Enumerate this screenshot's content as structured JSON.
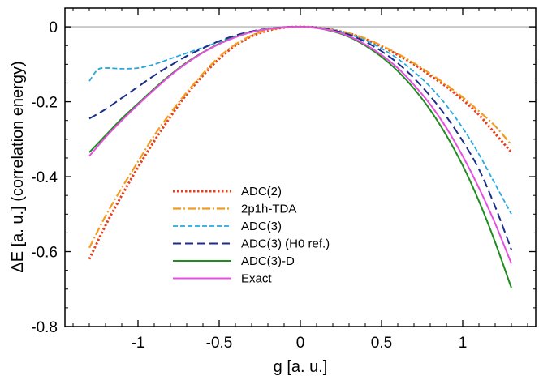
{
  "chart_data": {
    "type": "line",
    "xlabel": "g [a. u.]",
    "ylabel": "ΔE [a. u.]  (correlation energy)",
    "xlim": [
      -1.45,
      1.45
    ],
    "ylim": [
      -0.8,
      0.05
    ],
    "xticks": [
      -1,
      -0.5,
      0,
      0.5,
      1
    ],
    "xtick_labels": [
      "-1",
      "-0.5",
      "0",
      "0.5",
      "1"
    ],
    "yticks": [
      -0.8,
      -0.6,
      -0.4,
      -0.2,
      0
    ],
    "ytick_labels": [
      "-0.8",
      "-0.6",
      "-0.4",
      "-0.2",
      "0"
    ],
    "reference_line_y": 0,
    "legend_position": "center-left",
    "series": [
      {
        "name": "ADC(2)",
        "color": "#e8401c",
        "style": "dotted",
        "x": [
          -1.3,
          -1.2,
          -1.1,
          -1.0,
          -0.9,
          -0.8,
          -0.7,
          -0.6,
          -0.5,
          -0.4,
          -0.3,
          -0.2,
          -0.1,
          0.0,
          0.1,
          0.2,
          0.3,
          0.4,
          0.5,
          0.6,
          0.7,
          0.8,
          0.9,
          1.0,
          1.1,
          1.2,
          1.3
        ],
        "values": [
          -0.62,
          -0.53,
          -0.45,
          -0.375,
          -0.305,
          -0.24,
          -0.18,
          -0.13,
          -0.085,
          -0.05,
          -0.025,
          -0.01,
          -0.002,
          0.0,
          -0.002,
          -0.008,
          -0.018,
          -0.033,
          -0.052,
          -0.075,
          -0.1,
          -0.13,
          -0.16,
          -0.195,
          -0.235,
          -0.285,
          -0.335
        ]
      },
      {
        "name": "2p1h-TDA",
        "color": "#f39c1f",
        "style": "dashdot",
        "x": [
          -1.3,
          -1.2,
          -1.1,
          -1.0,
          -0.9,
          -0.8,
          -0.7,
          -0.6,
          -0.5,
          -0.4,
          -0.3,
          -0.2,
          -0.1,
          0.0,
          0.1,
          0.2,
          0.3,
          0.4,
          0.5,
          0.6,
          0.7,
          0.8,
          0.9,
          1.0,
          1.1,
          1.2,
          1.3
        ],
        "values": [
          -0.59,
          -0.505,
          -0.43,
          -0.36,
          -0.29,
          -0.23,
          -0.175,
          -0.125,
          -0.08,
          -0.047,
          -0.023,
          -0.009,
          -0.002,
          0.0,
          -0.002,
          -0.008,
          -0.017,
          -0.031,
          -0.05,
          -0.072,
          -0.097,
          -0.125,
          -0.155,
          -0.188,
          -0.225,
          -0.265,
          -0.315
        ]
      },
      {
        "name": "ADC(3)",
        "color": "#29a8e0",
        "style": "dashed",
        "x": [
          -1.3,
          -1.25,
          -1.2,
          -1.1,
          -1.0,
          -0.9,
          -0.8,
          -0.7,
          -0.6,
          -0.5,
          -0.4,
          -0.3,
          -0.2,
          -0.1,
          0.0,
          0.1,
          0.2,
          0.3,
          0.4,
          0.5,
          0.6,
          0.7,
          0.8,
          0.9,
          1.0,
          1.1,
          1.2,
          1.3
        ],
        "values": [
          -0.145,
          -0.115,
          -0.11,
          -0.112,
          -0.11,
          -0.1,
          -0.085,
          -0.07,
          -0.055,
          -0.04,
          -0.025,
          -0.013,
          -0.005,
          -0.001,
          0.0,
          -0.002,
          -0.008,
          -0.02,
          -0.036,
          -0.058,
          -0.085,
          -0.12,
          -0.16,
          -0.21,
          -0.27,
          -0.34,
          -0.42,
          -0.5
        ]
      },
      {
        "name": "ADC(3) (H0 ref.)",
        "color": "#1a2e8a",
        "style": "longdash",
        "x": [
          -1.3,
          -1.2,
          -1.1,
          -1.0,
          -0.9,
          -0.8,
          -0.7,
          -0.6,
          -0.5,
          -0.4,
          -0.3,
          -0.2,
          -0.1,
          0.0,
          0.1,
          0.2,
          0.3,
          0.4,
          0.5,
          0.6,
          0.7,
          0.8,
          0.9,
          1.0,
          1.1,
          1.2,
          1.3
        ],
        "values": [
          -0.245,
          -0.22,
          -0.19,
          -0.16,
          -0.13,
          -0.103,
          -0.078,
          -0.057,
          -0.038,
          -0.023,
          -0.012,
          -0.005,
          -0.001,
          0.0,
          -0.002,
          -0.009,
          -0.021,
          -0.04,
          -0.065,
          -0.097,
          -0.137,
          -0.185,
          -0.24,
          -0.305,
          -0.38,
          -0.48,
          -0.595
        ]
      },
      {
        "name": "ADC(3)-D",
        "color": "#1f8c1f",
        "style": "solid",
        "x": [
          -1.3,
          -1.2,
          -1.1,
          -1.0,
          -0.9,
          -0.8,
          -0.7,
          -0.6,
          -0.5,
          -0.4,
          -0.3,
          -0.2,
          -0.1,
          0.0,
          0.1,
          0.2,
          0.3,
          0.4,
          0.5,
          0.6,
          0.7,
          0.8,
          0.9,
          1.0,
          1.1,
          1.2,
          1.3
        ],
        "values": [
          -0.335,
          -0.29,
          -0.245,
          -0.205,
          -0.165,
          -0.128,
          -0.095,
          -0.068,
          -0.045,
          -0.027,
          -0.014,
          -0.006,
          -0.0015,
          0.0,
          -0.003,
          -0.012,
          -0.027,
          -0.05,
          -0.08,
          -0.118,
          -0.165,
          -0.222,
          -0.29,
          -0.37,
          -0.465,
          -0.575,
          -0.697
        ]
      },
      {
        "name": "Exact",
        "color": "#e84fe0",
        "style": "solid",
        "x": [
          -1.3,
          -1.2,
          -1.1,
          -1.0,
          -0.9,
          -0.8,
          -0.7,
          -0.6,
          -0.5,
          -0.4,
          -0.3,
          -0.2,
          -0.1,
          0.0,
          0.1,
          0.2,
          0.3,
          0.4,
          0.5,
          0.6,
          0.7,
          0.8,
          0.9,
          1.0,
          1.1,
          1.2,
          1.3
        ],
        "values": [
          -0.345,
          -0.295,
          -0.25,
          -0.208,
          -0.168,
          -0.13,
          -0.097,
          -0.069,
          -0.046,
          -0.028,
          -0.014,
          -0.006,
          -0.0015,
          0.0,
          -0.003,
          -0.011,
          -0.025,
          -0.047,
          -0.075,
          -0.11,
          -0.155,
          -0.207,
          -0.27,
          -0.345,
          -0.43,
          -0.525,
          -0.632
        ]
      }
    ]
  }
}
